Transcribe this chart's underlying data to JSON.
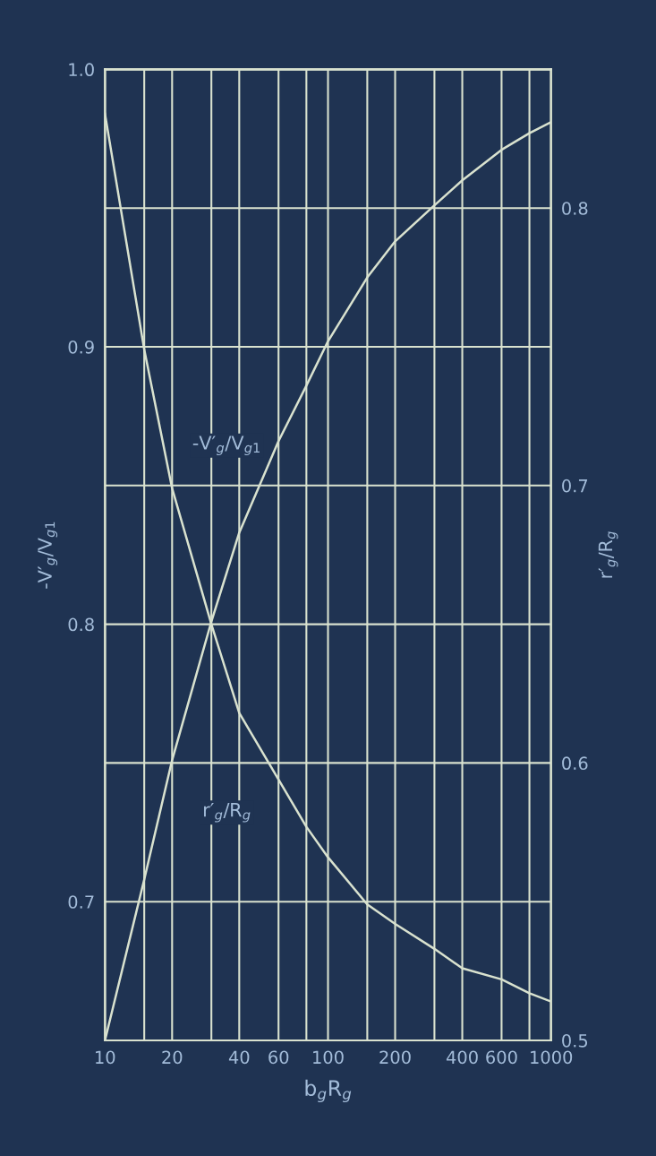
{
  "chart_data": {
    "type": "line",
    "xlabel": "b$_{g}$R$_{g}$",
    "ylabel": "-V′$_{g}$/V$_{g1}$",
    "y2label": "r′$_{g}$/R$_{g}$",
    "x": [
      10,
      15,
      20,
      30,
      40,
      60,
      80,
      100,
      150,
      200,
      300,
      400,
      600,
      800,
      1000
    ],
    "series": [
      {
        "name": "-V′$_{g}$/V$_{g1}$",
        "color": "#d9e2cf",
        "values": [
          0.65,
          0.708,
          0.751,
          0.801,
          0.833,
          0.866,
          0.886,
          0.902,
          0.925,
          0.938,
          0.951,
          0.96,
          0.971,
          0.977,
          0.981
        ]
      },
      {
        "name": "r′$_{g}$/R$_{g}$",
        "color": "#d9e2cf",
        "axis": "y2",
        "values": [
          0.834,
          0.749,
          0.699,
          0.65,
          0.618,
          0.594,
          0.577,
          0.566,
          0.549,
          0.542,
          0.533,
          0.526,
          0.522,
          0.517,
          0.514
        ]
      }
    ],
    "log": "x",
    "xlim": [
      10,
      1000
    ],
    "xticks": [
      10,
      {
        "value": 15,
        "label": null
      },
      20,
      {
        "value": 30,
        "label": null
      },
      40,
      60,
      {
        "value": 80,
        "label": null
      },
      100,
      {
        "value": 150,
        "label": null
      },
      200,
      {
        "value": 300,
        "label": null
      },
      400,
      600,
      {
        "value": 800,
        "label": null
      },
      1000
    ],
    "ylim": [
      0.65,
      1.0
    ],
    "yticks": [
      0.7,
      0.8,
      0.9,
      {
        "value": 1.0,
        "label": "1.0"
      }
    ],
    "y2lim": [
      0.5,
      0.85
    ],
    "y2ticks": [
      0.5,
      0.6,
      0.7,
      0.8
    ],
    "grid": true
  }
}
